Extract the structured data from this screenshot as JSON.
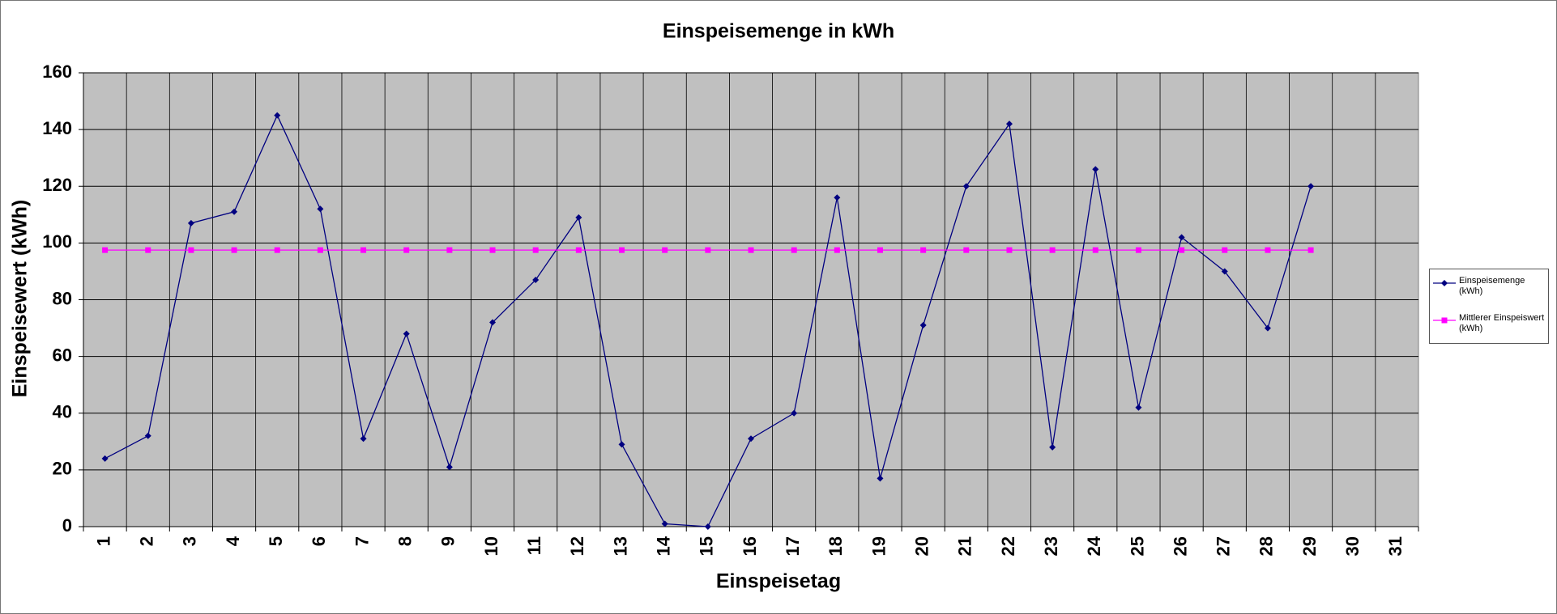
{
  "chart_data": {
    "type": "line",
    "title": "Einspeisemenge in kWh",
    "x_label": "Einspeisetag",
    "y_label": "Einspeisewert  (kWh)",
    "categories": [
      "1",
      "2",
      "3",
      "4",
      "5",
      "6",
      "7",
      "8",
      "9",
      "10",
      "11",
      "12",
      "13",
      "14",
      "15",
      "16",
      "17",
      "18",
      "19",
      "20",
      "21",
      "22",
      "23",
      "24",
      "25",
      "26",
      "27",
      "28",
      "29",
      "30",
      "31"
    ],
    "series": [
      {
        "name": "Einspeisemenge (kWh)",
        "color": "#000080",
        "marker": "diamond",
        "values": [
          24,
          32,
          107,
          111,
          145,
          112,
          31,
          68,
          21,
          72,
          87,
          109,
          29,
          1,
          0,
          31,
          40,
          116,
          17,
          71,
          120,
          142,
          28,
          126,
          42,
          102,
          90,
          70,
          120,
          null,
          null
        ]
      },
      {
        "name": "Mittlerer Einspeiswert (kWh)",
        "color": "#ff00ff",
        "marker": "square",
        "values": [
          97.5,
          97.5,
          97.5,
          97.5,
          97.5,
          97.5,
          97.5,
          97.5,
          97.5,
          97.5,
          97.5,
          97.5,
          97.5,
          97.5,
          97.5,
          97.5,
          97.5,
          97.5,
          97.5,
          97.5,
          97.5,
          97.5,
          97.5,
          97.5,
          97.5,
          97.5,
          97.5,
          97.5,
          97.5,
          null,
          null
        ]
      }
    ],
    "ylim": [
      0,
      160
    ],
    "yticks": [
      0,
      20,
      40,
      60,
      80,
      100,
      120,
      140,
      160
    ],
    "grid": true,
    "legend": "right",
    "plot_background": "#c0c0c0"
  }
}
